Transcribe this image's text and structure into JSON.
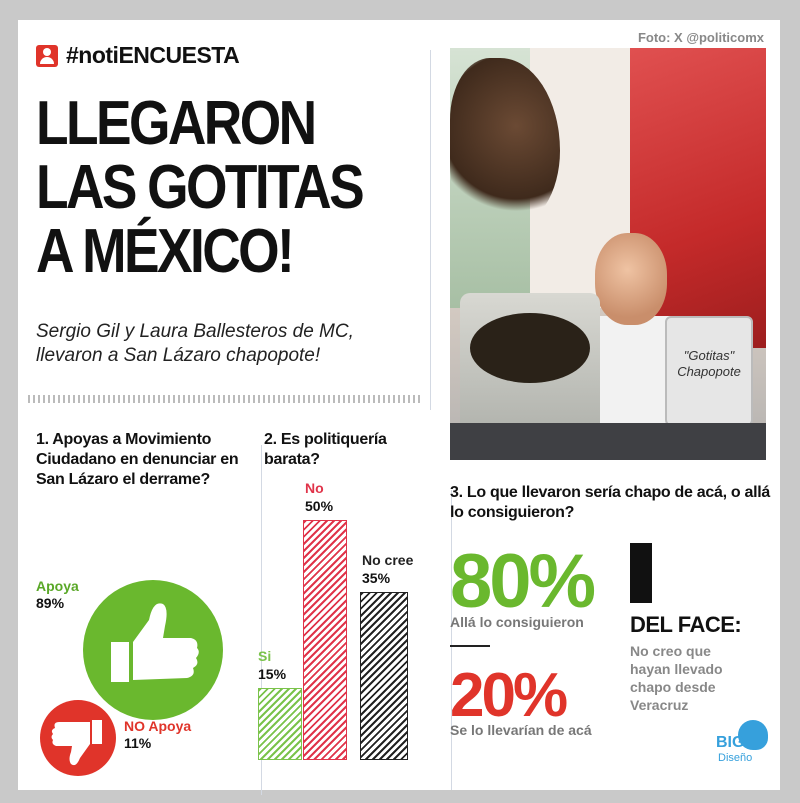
{
  "header": {
    "brand": "#notiENCUESTA",
    "photo_credit": "Foto: X @politicomx"
  },
  "headline": {
    "line1": "LLEGARON",
    "line2": "LAS GOTITAS",
    "line3": "A MÉXICO!"
  },
  "subtitle": "Sergio Gil y Laura Ballesteros de MC, llevaron a San Lázaro chapopote!",
  "photo": {
    "jar_label_1": "\"Gotitas\"",
    "jar_label_2": "Chapopote"
  },
  "q1": {
    "question": "1. Apoyas a Movimiento Ciudadano en denunciar en San Lázaro el derrame?",
    "yes_label": "Apoya",
    "yes_value": "89%",
    "no_label": "NO Apoya",
    "no_value": "11%",
    "colors": {
      "yes": "#6ab82e",
      "no": "#e0342a"
    }
  },
  "q2": {
    "question": "2. Es politiquería barata?",
    "chart_data": {
      "type": "bar",
      "categories": [
        "Si",
        "No",
        "No cree"
      ],
      "values": [
        15,
        50,
        35
      ],
      "value_labels": [
        "15%",
        "50%",
        "35%"
      ],
      "colors": [
        "#7bc34b",
        "#e0344a",
        "#222222"
      ],
      "ylim": [
        0,
        50
      ]
    }
  },
  "q3": {
    "question": "3. Lo que llevaron sería chapo de acá, o allá lo consiguieron?",
    "opt1_value": "80%",
    "opt1_caption": "Allá lo consiguieron",
    "opt2_value": "20%",
    "opt2_caption": "Se lo llevarían de acá",
    "colors": {
      "opt1": "#6ab82e",
      "opt2": "#e0342a"
    }
  },
  "face": {
    "title": "DEL FACE:",
    "quote": "No creo que hayan llevado chapo desde Veracruz"
  },
  "logo": {
    "big": "BIG",
    "sub": "Diseño"
  }
}
